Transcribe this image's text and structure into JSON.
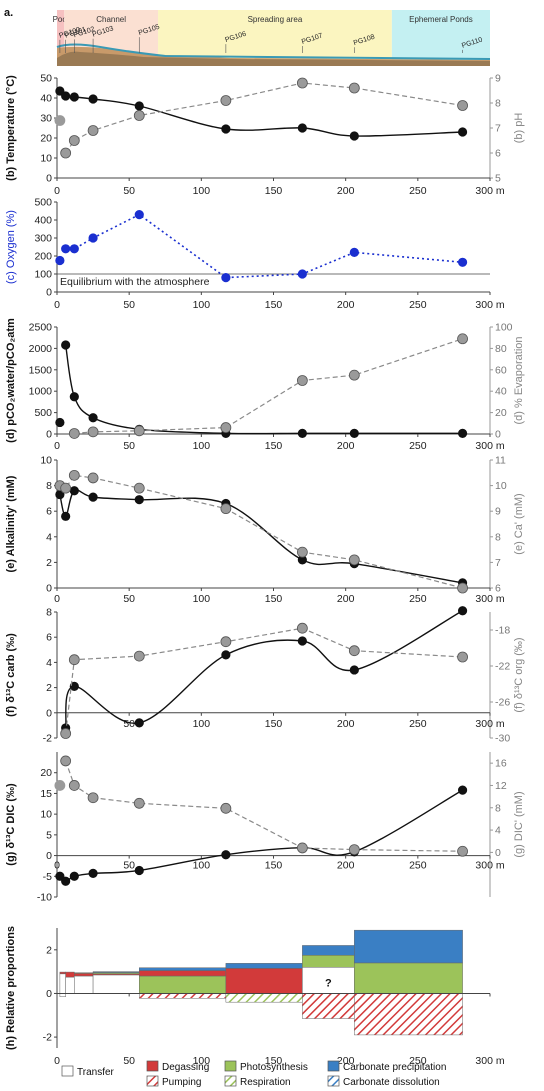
{
  "figure_label": "a.",
  "zones": [
    {
      "name": "Pool",
      "x0": 0,
      "x1": 5,
      "color": "#f6c1c1"
    },
    {
      "name": "Channel",
      "x0": 5,
      "x1": 70,
      "color": "#fbe0d2"
    },
    {
      "name": "Spreading area",
      "x0": 70,
      "x1": 232,
      "color": "#fbf5c0"
    },
    {
      "name": "Ephemeral Ponds",
      "x0": 232,
      "x1": 300,
      "color": "#c4f0f2"
    }
  ],
  "sites": [
    {
      "name": "PG100",
      "x": 2
    },
    {
      "name": "PG101",
      "x": 6
    },
    {
      "name": "PG102",
      "x": 12
    },
    {
      "name": "PG103",
      "x": 25
    },
    {
      "name": "PG105",
      "x": 57
    },
    {
      "name": "PG106",
      "x": 117
    },
    {
      "name": "PG107",
      "x": 170
    },
    {
      "name": "PG108",
      "x": 206
    },
    {
      "name": "PG110",
      "x": 281
    }
  ],
  "x_unit": "m",
  "chart_data": [
    {
      "id": "b",
      "type": "line",
      "ylabel": "(b) Temperature (°C)",
      "y2label": "(b) pH",
      "ylim": [
        0,
        50
      ],
      "yticks": [
        0,
        10,
        20,
        30,
        40,
        50
      ],
      "y2lim": [
        5,
        9
      ],
      "y2ticks": [
        5,
        6,
        7,
        8,
        9
      ],
      "series": [
        {
          "name": "Temperature",
          "axis": "left",
          "style": "black-solid",
          "x": [
            2,
            6,
            12,
            25,
            57,
            117,
            170,
            206,
            281
          ],
          "y": [
            43.5,
            41,
            40.5,
            39.5,
            36,
            24.5,
            25,
            21,
            23
          ]
        },
        {
          "name": "pH",
          "axis": "right",
          "style": "grey-dashed",
          "x": [
            6,
            12,
            25,
            57,
            117,
            170,
            206,
            281
          ],
          "y": [
            6.0,
            6.5,
            6.9,
            7.5,
            8.1,
            8.8,
            8.6,
            7.9
          ]
        },
        {
          "name": "pH pool",
          "axis": "right",
          "style": "grey-point",
          "x": [
            2
          ],
          "y": [
            7.3
          ]
        }
      ]
    },
    {
      "id": "c",
      "type": "line",
      "ylabel": "(c) Oxygen (%)",
      "ylim": [
        0,
        500
      ],
      "yticks": [
        0,
        100,
        200,
        300,
        400,
        500
      ],
      "reference": {
        "y": 100,
        "label": "Equilibrium with the atmosphere"
      },
      "series": [
        {
          "name": "Oxygen",
          "axis": "left",
          "style": "blue-dotted",
          "x": [
            6,
            12,
            25,
            57,
            117,
            170,
            206,
            281
          ],
          "y": [
            240,
            240,
            300,
            430,
            80,
            100,
            220,
            165
          ]
        },
        {
          "name": "Oxygen pool",
          "axis": "left",
          "style": "blue-point",
          "x": [
            2
          ],
          "y": [
            175
          ]
        }
      ]
    },
    {
      "id": "d",
      "type": "line",
      "ylabel": "(d) pCO₂water/pCO₂atm",
      "y2label": "(d) % Evaporation",
      "ylim": [
        0,
        2500
      ],
      "yticks": [
        0,
        500,
        1000,
        1500,
        2000,
        2500
      ],
      "y2lim": [
        0,
        100
      ],
      "y2ticks": [
        0,
        20,
        40,
        60,
        80,
        100
      ],
      "series": [
        {
          "name": "pCO2 ratio",
          "axis": "left",
          "style": "black-solid",
          "x": [
            6,
            12,
            25,
            57,
            117,
            170,
            206,
            281
          ],
          "y": [
            2080,
            870,
            380,
            110,
            15,
            15,
            15,
            15
          ]
        },
        {
          "name": "pCO2 pool",
          "axis": "left",
          "style": "black-point",
          "x": [
            2
          ],
          "y": [
            270
          ]
        },
        {
          "name": "Evaporation",
          "axis": "right",
          "style": "grey-dashed",
          "x": [
            12,
            25,
            57,
            117,
            170,
            206,
            281
          ],
          "y": [
            0.5,
            2,
            3,
            6,
            50,
            55,
            89
          ]
        }
      ]
    },
    {
      "id": "e",
      "type": "line",
      "ylabel": "(e) Alkalinity' (mM)",
      "y2label": "(e) Ca' (mM)",
      "ylim": [
        0,
        10
      ],
      "yticks": [
        0,
        2,
        4,
        6,
        8,
        10
      ],
      "y2lim": [
        6,
        11
      ],
      "y2ticks": [
        6,
        7,
        8,
        9,
        10,
        11
      ],
      "series": [
        {
          "name": "Alkalinity",
          "axis": "left",
          "style": "black-solid",
          "x": [
            2,
            6,
            12,
            25,
            57,
            117,
            170,
            206,
            281
          ],
          "y": [
            7.3,
            5.6,
            7.6,
            7.1,
            6.9,
            6.6,
            2.2,
            1.9,
            0.4
          ]
        },
        {
          "name": "Ca",
          "axis": "right",
          "style": "grey-dashed",
          "x": [
            2,
            6,
            12,
            25,
            57,
            117,
            170,
            206,
            281
          ],
          "y": [
            10.0,
            9.9,
            10.4,
            10.3,
            9.9,
            9.1,
            7.4,
            7.1,
            6.0
          ]
        }
      ]
    },
    {
      "id": "f",
      "type": "line",
      "ylabel": "(f) δ¹³C carb (‰)",
      "y2label": "(f) δ¹³C org (‰)",
      "ylim": [
        -2,
        8
      ],
      "yticks": [
        -2,
        0,
        2,
        4,
        6,
        8
      ],
      "y2lim": [
        -30,
        -16
      ],
      "y2ticks": [
        -30,
        -26,
        -22,
        -18
      ],
      "series": [
        {
          "name": "d13C carb",
          "axis": "left",
          "style": "black-solid",
          "x": [
            6,
            12,
            57,
            117,
            170,
            206,
            281
          ],
          "y": [
            -1.2,
            2.1,
            -0.8,
            4.6,
            5.7,
            3.4,
            8.1
          ]
        },
        {
          "name": "d13C org",
          "axis": "right",
          "style": "grey-dashed",
          "x": [
            6,
            12,
            57,
            117,
            170,
            206,
            281
          ],
          "y": [
            -29.5,
            -21.3,
            -20.9,
            -19.3,
            -17.8,
            -20.3,
            -21.0
          ]
        }
      ]
    },
    {
      "id": "g",
      "type": "line",
      "ylabel": "(g) δ¹³C DIC (‰)",
      "y2label": "(g) DIC' (mM)",
      "ylim": [
        -10,
        25
      ],
      "yticks": [
        -10,
        -5,
        0,
        5,
        10,
        15,
        20
      ],
      "y2lim": [
        -8,
        18
      ],
      "y2ticks": [
        0,
        4,
        8,
        12,
        16
      ],
      "series": [
        {
          "name": "d13C DIC",
          "axis": "left",
          "style": "black-solid",
          "x": [
            2,
            6,
            12,
            25,
            57,
            117,
            170,
            206,
            281
          ],
          "y": [
            -5.0,
            -6.2,
            -5.0,
            -4.3,
            -3.6,
            0.2,
            1.9,
            0.9,
            15.8
          ]
        },
        {
          "name": "DIC",
          "axis": "right",
          "style": "grey-dashed",
          "x": [
            6,
            12,
            25,
            57,
            117,
            170,
            206,
            281
          ],
          "y": [
            16.4,
            12.0,
            9.8,
            8.8,
            7.9,
            0.8,
            0.5,
            0.2
          ]
        },
        {
          "name": "DIC pool",
          "axis": "right",
          "style": "grey-point",
          "x": [
            2
          ],
          "y": [
            12.0
          ]
        }
      ]
    },
    {
      "id": "h",
      "type": "bar",
      "ylabel": "(h) Relative proportions",
      "ylim": [
        -2.5,
        3
      ],
      "yticks": [
        -2,
        0,
        2
      ],
      "segments": [
        {
          "x0": 2,
          "x1": 6,
          "parts": [
            {
              "p": "transfer",
              "b": -0.15,
              "t": 0.9
            },
            {
              "p": "degassing",
              "b": 0.9,
              "t": 0.98
            }
          ]
        },
        {
          "x0": 6,
          "x1": 12,
          "parts": [
            {
              "p": "transfer",
              "b": 0,
              "t": 0.75
            },
            {
              "p": "degassing",
              "b": 0.75,
              "t": 0.98
            }
          ]
        },
        {
          "x0": 12,
          "x1": 25,
          "parts": [
            {
              "p": "transfer",
              "b": 0,
              "t": 0.8
            },
            {
              "p": "degassing",
              "b": 0.8,
              "t": 0.92
            },
            {
              "p": "photosynthesis",
              "b": 0.92,
              "t": 0.95
            }
          ]
        },
        {
          "x0": 25,
          "x1": 57,
          "parts": [
            {
              "p": "transfer",
              "b": 0,
              "t": 0.85
            },
            {
              "p": "degassing",
              "b": 0.85,
              "t": 0.9
            },
            {
              "p": "photosynthesis",
              "b": 0.9,
              "t": 0.96
            },
            {
              "p": "carbonate_precipitation",
              "b": 0.96,
              "t": 1.0
            }
          ]
        },
        {
          "x0": 57,
          "x1": 117,
          "parts": [
            {
              "p": "pumping",
              "b": -0.22,
              "t": 0
            },
            {
              "p": "photosynthesis",
              "b": 0,
              "t": 0.8
            },
            {
              "p": "degassing",
              "b": 0.8,
              "t": 1.05
            },
            {
              "p": "carbonate_precipitation",
              "b": 1.05,
              "t": 1.18
            }
          ]
        },
        {
          "x0": 117,
          "x1": 170,
          "parts": [
            {
              "p": "respiration",
              "b": -0.4,
              "t": 0
            },
            {
              "p": "degassing",
              "b": 0,
              "t": 1.15
            },
            {
              "p": "carbonate_precipitation",
              "b": 1.15,
              "t": 1.38
            }
          ]
        },
        {
          "x0": 170,
          "x1": 206,
          "parts": [
            {
              "p": "pumping",
              "b": -1.15,
              "t": 0
            },
            {
              "p": "transfer",
              "b": 0,
              "t": 1.2,
              "note": "?"
            },
            {
              "p": "photosynthesis",
              "b": 1.2,
              "t": 1.75
            },
            {
              "p": "carbonate_precipitation",
              "b": 1.75,
              "t": 2.2
            }
          ]
        },
        {
          "x0": 206,
          "x1": 281,
          "parts": [
            {
              "p": "pumping",
              "b": -1.9,
              "t": 0
            },
            {
              "p": "photosynthesis",
              "b": 0,
              "t": 1.4
            },
            {
              "p": "carbonate_precipitation",
              "b": 1.4,
              "t": 2.9
            }
          ]
        }
      ]
    }
  ],
  "xaxis": {
    "xlim": [
      0,
      300
    ],
    "xticks": [
      0,
      50,
      100,
      150,
      200,
      250
    ],
    "end_label": "300 m"
  },
  "legend": [
    {
      "key": "transfer",
      "label": "Transfer",
      "fill": "#ffffff",
      "hatch": false
    },
    {
      "key": "degassing",
      "label": "Degassing",
      "fill": "#d23a3a",
      "hatch": false
    },
    {
      "key": "pumping",
      "label": "Pumping",
      "fill": "#d23a3a",
      "hatch": true
    },
    {
      "key": "photosynthesis",
      "label": "Photosynthesis",
      "fill": "#9cc35a",
      "hatch": false
    },
    {
      "key": "respiration",
      "label": "Respiration",
      "fill": "#9cc35a",
      "hatch": true
    },
    {
      "key": "carbonate_precipitation",
      "label": "Carbonate precipitation",
      "fill": "#3a7fc4",
      "hatch": false
    },
    {
      "key": "carbonate_dissolution",
      "label": "Carbonate dissolution",
      "fill": "#3a7fc4",
      "hatch": true
    }
  ],
  "colors": {
    "black": "#111111",
    "grey": "#8a8a8a",
    "blue": "#1a2fd0"
  }
}
